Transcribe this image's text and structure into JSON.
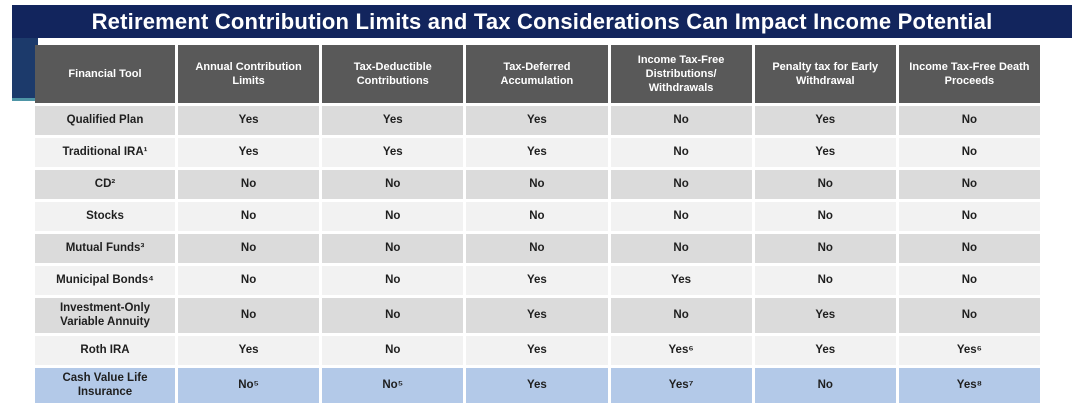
{
  "title": "Retirement Contribution Limits and Tax Considerations Can Impact Income Potential",
  "colors": {
    "title_bar_bg": "#12255d",
    "accent_block_bg": "#1c3a6b",
    "accent_teal": "#4e95a6",
    "header_bg": "#595959",
    "header_text": "#ffffff",
    "row_alt_dark": "#dbdbdb",
    "row_alt_light": "#f2f2f2",
    "highlight_row_bg": "#b3c9e8",
    "cell_text": "#1f1f1f"
  },
  "table": {
    "columns": [
      "Financial Tool",
      "Annual Contribution Limits",
      "Tax-Deductible Contributions",
      "Tax-Deferred Accumulation",
      "Income Tax-Free Distributions/ Withdrawals",
      "Penalty tax for Early Withdrawal",
      "Income Tax-Free Death Proceeds"
    ],
    "rows": [
      {
        "tool": "Qualified Plan",
        "values": [
          "Yes",
          "Yes",
          "Yes",
          "No",
          "Yes",
          "No"
        ],
        "highlight": false
      },
      {
        "tool": "Traditional IRA¹",
        "values": [
          "Yes",
          "Yes",
          "Yes",
          "No",
          "Yes",
          "No"
        ],
        "highlight": false
      },
      {
        "tool": "CD²",
        "values": [
          "No",
          "No",
          "No",
          "No",
          "No",
          "No"
        ],
        "highlight": false
      },
      {
        "tool": "Stocks",
        "values": [
          "No",
          "No",
          "No",
          "No",
          "No",
          "No"
        ],
        "highlight": false
      },
      {
        "tool": "Mutual Funds³",
        "values": [
          "No",
          "No",
          "No",
          "No",
          "No",
          "No"
        ],
        "highlight": false
      },
      {
        "tool": "Municipal Bonds⁴",
        "values": [
          "No",
          "No",
          "Yes",
          "Yes",
          "No",
          "No"
        ],
        "highlight": false
      },
      {
        "tool": "Investment-Only Variable Annuity",
        "values": [
          "No",
          "No",
          "Yes",
          "No",
          "Yes",
          "No"
        ],
        "highlight": false
      },
      {
        "tool": "Roth IRA",
        "values": [
          "Yes",
          "No",
          "Yes",
          "Yes⁶",
          "Yes",
          "Yes⁶"
        ],
        "highlight": false
      },
      {
        "tool": "Cash Value Life Insurance",
        "values": [
          "No⁵",
          "No⁵",
          "Yes",
          "Yes⁷",
          "No",
          "Yes⁸"
        ],
        "highlight": true
      }
    ]
  }
}
